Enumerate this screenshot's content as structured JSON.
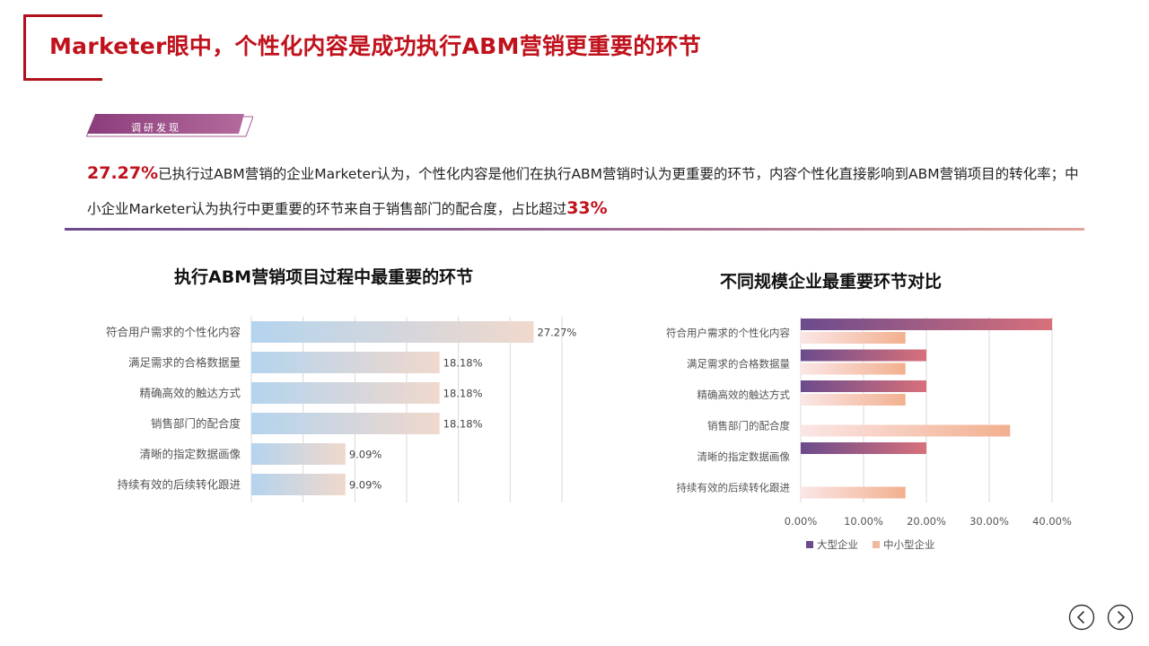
{
  "header": {
    "title": "Marketer眼中，个性化内容是成功执行ABM营销更重要的环节",
    "tag": "调研发现"
  },
  "summary": {
    "highlight_1": "27.27%",
    "text_1": "已执行过ABM营销的企业Marketer认为，个性化内容是他们在执行ABM营销时认为更重要的环节，内容个性化直接影响到ABM营销项目的转化率；中小企业Marketer认为执行中更重要的环节来自于销售部门的配合度，占比超过",
    "highlight_2": "33%"
  },
  "colors": {
    "accent_red": "#c0121c",
    "large_enterprise": "#6b4b8c",
    "sme": "#f0b89c",
    "bar_left": "#b4d4ee",
    "bar_right": "#f0d8cc"
  },
  "chart_data": [
    {
      "type": "bar",
      "orientation": "horizontal",
      "title": "执行ABM营销项目过程中最重要的环节",
      "categories": [
        "符合用户需求的个性化内容",
        "满足需求的合格数据量",
        "精确高效的触达方式",
        "销售部门的配合度",
        "清晰的指定数据画像",
        "持续有效的后续转化跟进"
      ],
      "values": [
        27.27,
        18.18,
        18.18,
        18.18,
        9.09,
        9.09
      ],
      "value_labels": [
        "27.27%",
        "18.18%",
        "18.18%",
        "18.18%",
        "9.09%",
        "9.09%"
      ],
      "xlim": [
        0,
        30
      ],
      "grid": true
    },
    {
      "type": "bar",
      "orientation": "horizontal",
      "title": "不同规模企业最重要环节对比",
      "categories": [
        "符合用户需求的个性化内容",
        "满足需求的合格数据量",
        "精确高效的触达方式",
        "销售部门的配合度",
        "清晰的指定数据画像",
        "持续有效的后续转化跟进"
      ],
      "series": [
        {
          "name": "大型企业",
          "values": [
            40,
            20,
            20,
            0,
            20,
            0
          ]
        },
        {
          "name": "中小型企业",
          "values": [
            16.67,
            16.67,
            16.67,
            33.33,
            0,
            16.67
          ]
        }
      ],
      "xlim": [
        0,
        40
      ],
      "xticks": [
        "0.00%",
        "10.00%",
        "20.00%",
        "30.00%",
        "40.00%"
      ],
      "grid": true,
      "legend": "bottom-left"
    }
  ]
}
